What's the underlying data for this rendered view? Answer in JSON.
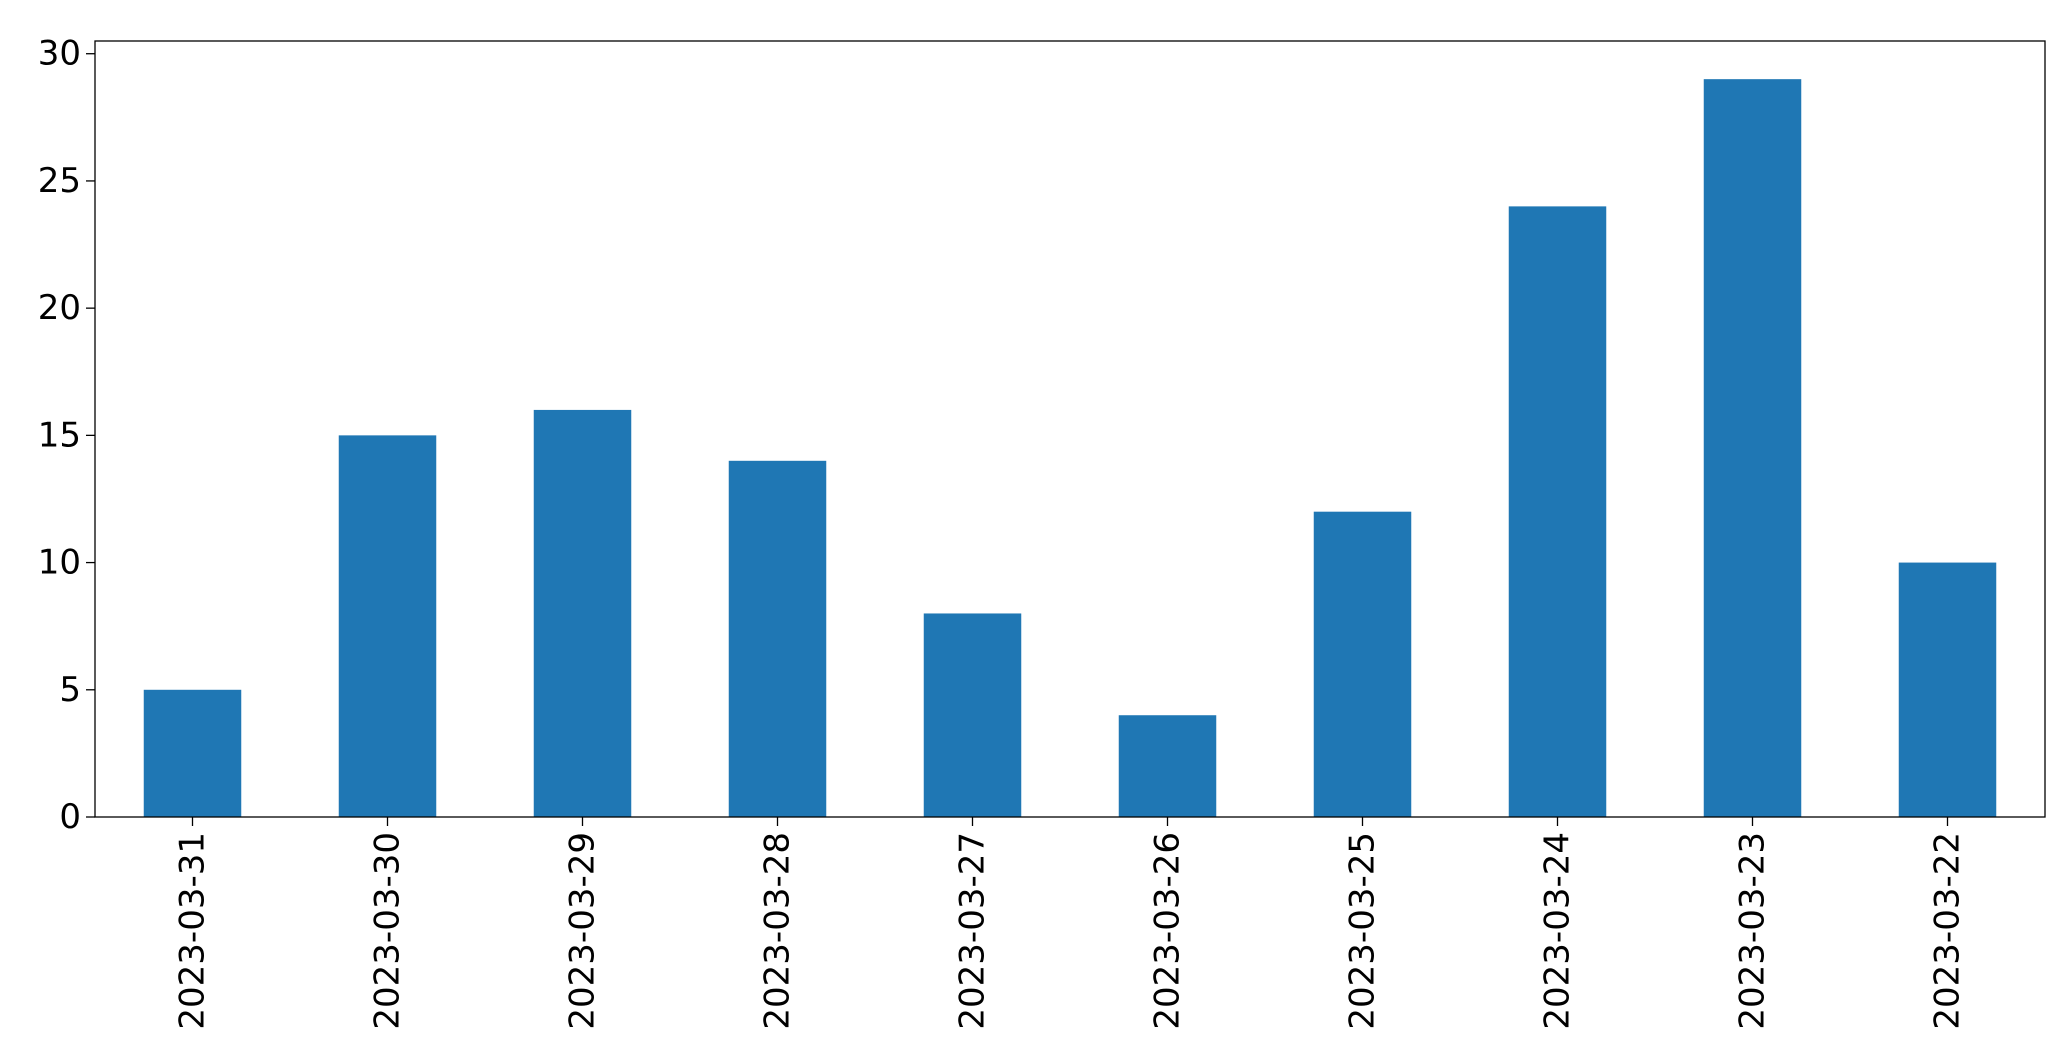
{
  "chart_data": {
    "type": "bar",
    "title": "",
    "xlabel": "",
    "ylabel": "",
    "categories": [
      "2023-03-31",
      "2023-03-30",
      "2023-03-29",
      "2023-03-28",
      "2023-03-27",
      "2023-03-26",
      "2023-03-25",
      "2023-03-24",
      "2023-03-23",
      "2023-03-22"
    ],
    "values": [
      5,
      15,
      16,
      14,
      8,
      4,
      12,
      24,
      29,
      10
    ],
    "ylim": [
      0,
      30.5
    ],
    "yticks": [
      0,
      5,
      10,
      15,
      20,
      25,
      30
    ],
    "ytick_labels": [
      "0",
      "5",
      "10",
      "15",
      "20",
      "25",
      "30"
    ],
    "grid": false,
    "bar_color": "#1f77b4"
  }
}
